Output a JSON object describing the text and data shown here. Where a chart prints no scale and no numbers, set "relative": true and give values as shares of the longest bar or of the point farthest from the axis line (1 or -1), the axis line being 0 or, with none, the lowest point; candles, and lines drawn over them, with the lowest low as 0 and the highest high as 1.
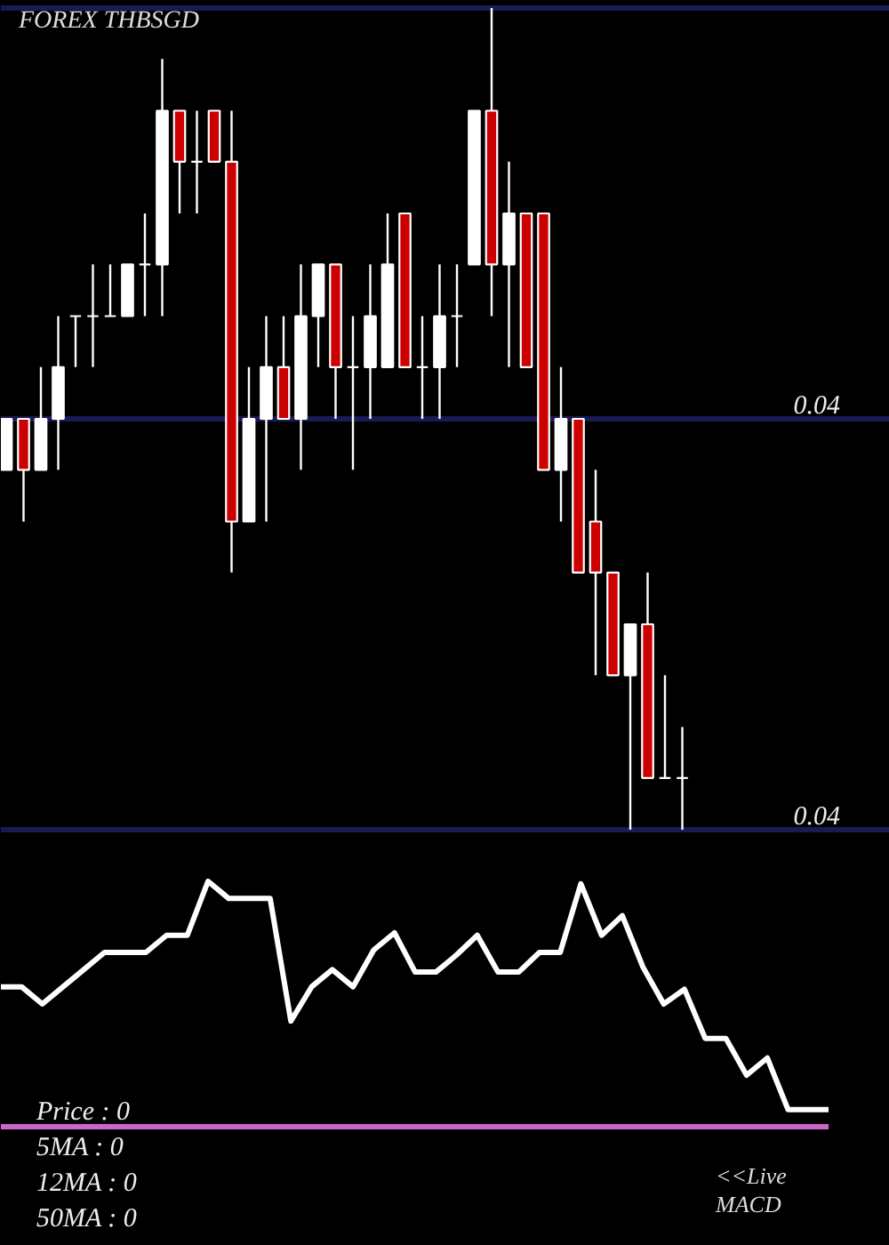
{
  "chart_data": [
    {
      "type": "candlestick",
      "title": "FOREX THBSGD",
      "relative": true,
      "categories": [
        null,
        null,
        null,
        null,
        null,
        null,
        null,
        null,
        null,
        null,
        null,
        null,
        null,
        null,
        null,
        null,
        null,
        null,
        null,
        null,
        null,
        null,
        null,
        null,
        null,
        null,
        null,
        null,
        null,
        null,
        null,
        null,
        null,
        null,
        null,
        null,
        null,
        null,
        null,
        null
      ],
      "ohlc": [
        [
          0.438,
          0.5,
          0.438,
          0.5
        ],
        [
          0.5,
          0.5,
          0.375,
          0.438
        ],
        [
          0.438,
          0.563,
          0.438,
          0.5
        ],
        [
          0.5,
          0.625,
          0.438,
          0.563
        ],
        [
          0.625,
          0.625,
          0.563,
          0.625
        ],
        [
          0.625,
          0.688,
          0.563,
          0.625
        ],
        [
          0.625,
          0.688,
          0.625,
          0.625
        ],
        [
          0.625,
          0.688,
          0.625,
          0.688
        ],
        [
          0.688,
          0.75,
          0.625,
          0.688
        ],
        [
          0.688,
          0.938,
          0.625,
          0.875
        ],
        [
          0.875,
          0.875,
          0.75,
          0.813
        ],
        [
          0.813,
          0.875,
          0.75,
          0.813
        ],
        [
          0.875,
          0.875,
          0.813,
          0.813
        ],
        [
          0.813,
          0.875,
          0.313,
          0.375
        ],
        [
          0.375,
          0.563,
          0.375,
          0.5
        ],
        [
          0.5,
          0.625,
          0.375,
          0.563
        ],
        [
          0.563,
          0.625,
          0.5,
          0.5
        ],
        [
          0.5,
          0.688,
          0.438,
          0.625
        ],
        [
          0.625,
          0.688,
          0.563,
          0.688
        ],
        [
          0.688,
          0.688,
          0.5,
          0.563
        ],
        [
          0.563,
          0.625,
          0.438,
          0.563
        ],
        [
          0.563,
          0.688,
          0.5,
          0.625
        ],
        [
          0.563,
          0.75,
          0.563,
          0.688
        ],
        [
          0.75,
          0.75,
          0.563,
          0.563
        ],
        [
          0.563,
          0.625,
          0.5,
          0.563
        ],
        [
          0.563,
          0.688,
          0.5,
          0.625
        ],
        [
          0.625,
          0.688,
          0.563,
          0.625
        ],
        [
          0.688,
          0.875,
          0.688,
          0.875
        ],
        [
          0.875,
          1,
          0.625,
          0.688
        ],
        [
          0.688,
          0.813,
          0.563,
          0.75
        ],
        [
          0.75,
          0.75,
          0.563,
          0.563
        ],
        [
          0.75,
          0.75,
          0.438,
          0.438
        ],
        [
          0.438,
          0.563,
          0.375,
          0.5
        ],
        [
          0.5,
          0.5,
          0.313,
          0.313
        ],
        [
          0.375,
          0.438,
          0.188,
          0.313
        ],
        [
          0.313,
          0.313,
          0.188,
          0.188
        ],
        [
          0.188,
          0.25,
          0,
          0.25
        ],
        [
          0.25,
          0.313,
          0.063,
          0.063
        ],
        [
          0.063,
          0.188,
          0.063,
          0.063
        ],
        [
          0.063,
          0.125,
          0,
          0.063
        ]
      ],
      "colors": [
        "#ffffff",
        "#cc0000",
        "#ffffff",
        "#ffffff",
        "#ffffff",
        "#ffffff",
        "#ffffff",
        "#ffffff",
        "#ffffff",
        "#ffffff",
        "#cc0000",
        "#ffffff",
        "#cc0000",
        "#cc0000",
        "#ffffff",
        "#ffffff",
        "#cc0000",
        "#ffffff",
        "#ffffff",
        "#cc0000",
        "#ffffff",
        "#ffffff",
        "#ffffff",
        "#cc0000",
        "#ffffff",
        "#ffffff",
        "#ffffff",
        "#ffffff",
        "#cc0000",
        "#ffffff",
        "#cc0000",
        "#cc0000",
        "#ffffff",
        "#cc0000",
        "#cc0000",
        "#cc0000",
        "#ffffff",
        "#cc0000",
        "#ffffff",
        "#ffffff"
      ],
      "ref_lines": [
        {
          "axis": "y",
          "value": 1,
          "color": "#1a1a55"
        },
        {
          "axis": "y",
          "value": 0.5,
          "color": "#1a1a55"
        },
        {
          "axis": "y",
          "value": 0,
          "color": "#1a1a55"
        }
      ],
      "annotations": [
        {
          "text": "0.04",
          "y": 0.5
        },
        {
          "text": "0.04",
          "y": 0
        }
      ]
    },
    {
      "type": "line",
      "relative": true,
      "categories": [
        null,
        null,
        null,
        null,
        null,
        null,
        null,
        null,
        null,
        null,
        null,
        null,
        null,
        null,
        null,
        null,
        null,
        null,
        null,
        null,
        null,
        null,
        null,
        null,
        null,
        null,
        null,
        null,
        null,
        null,
        null,
        null,
        null,
        null,
        null,
        null,
        null,
        null,
        null,
        null,
        null
      ],
      "series": [
        {
          "color": "#ffffff",
          "values": [
            0.57,
            0.57,
            0.5,
            0.57,
            0.64,
            0.71,
            0.71,
            0.71,
            0.78,
            0.78,
            1.0,
            0.93,
            0.93,
            0.93,
            0.43,
            0.57,
            0.64,
            0.57,
            0.72,
            0.79,
            0.63,
            0.63,
            0.7,
            0.78,
            0.63,
            0.63,
            0.71,
            0.71,
            0.99,
            0.78,
            0.86,
            0.65,
            0.5,
            0.56,
            0.36,
            0.36,
            0.21,
            0.28,
            0.07,
            0.07,
            0.07
          ]
        }
      ],
      "ref_lines": [
        {
          "axis": "y",
          "value": 0,
          "color": "#cc66cc"
        }
      ],
      "annotations": [
        "Price : 0",
        "5MA : 0",
        "12MA : 0",
        "50MA : 0",
        "<<Live MACD"
      ]
    }
  ]
}
